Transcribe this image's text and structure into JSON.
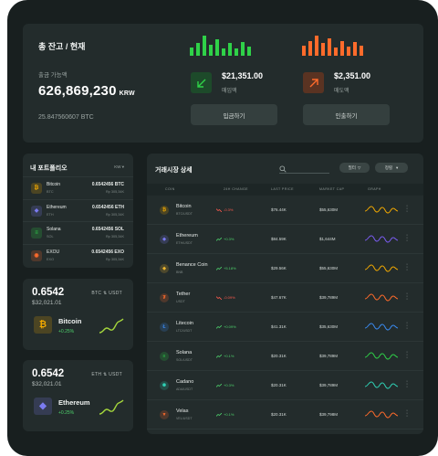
{
  "colors": {
    "green": "#2fd148",
    "orange": "#ff6b2b",
    "up": "#4ed16c",
    "down": "#ff5b4e"
  },
  "balance": {
    "title": "총 잔고 / 현재",
    "sub_label": "출금 가능액",
    "amount": "626,869,230",
    "currency": "KRW",
    "btc": "25.847560607 BTC",
    "deposit": {
      "amount": "$21,351.00",
      "label": "매입액",
      "icon": "arrow-down-left-icon",
      "button": "입금하기"
    },
    "withdraw": {
      "amount": "$2,351.00",
      "label": "매도액",
      "icon": "arrow-up-right-icon",
      "button": "인출하기"
    }
  },
  "portfolio": {
    "title": "내 포트폴리오",
    "selector": "KW",
    "items": [
      {
        "name": "Bitcoin",
        "symbol": "BTC",
        "amount": "0.6542456 BTC",
        "value": "Rp 305,34K",
        "color": "#f2a900",
        "icon": "bitcoin-icon",
        "glyph": "₿"
      },
      {
        "name": "Ethereum",
        "symbol": "ETH",
        "amount": "0.6542456 ETH",
        "value": "Rp 305,34K",
        "color": "#7b7bf2",
        "icon": "ethereum-icon",
        "glyph": "◆"
      },
      {
        "name": "Solana",
        "symbol": "SOL",
        "amount": "0.6542456 SOL",
        "value": "Rp 305,34K",
        "color": "#2fd148",
        "icon": "solana-icon",
        "glyph": "≡"
      },
      {
        "name": "EXOU",
        "symbol": "EXO",
        "amount": "0.6542456 EXO",
        "value": "Rp 305,34K",
        "color": "#ff6b2b",
        "icon": "exou-icon",
        "glyph": "◉"
      }
    ]
  },
  "tickers": [
    {
      "price": "0.6542",
      "usd": "$32,021.01",
      "pair": "BTC ⇅ USDT",
      "name": "Bitcoin",
      "change": "+0.25%",
      "icon": "bitcoin-icon",
      "glyph": "₿",
      "color": "#f2a900",
      "spark": "#a4d63c"
    },
    {
      "price": "0.6542",
      "usd": "$32,021.01",
      "pair": "ETH ⇅ USDT",
      "name": "Ethereum",
      "change": "+0.25%",
      "icon": "ethereum-icon",
      "glyph": "◆",
      "color": "#7b7bf2",
      "spark": "#a4d63c"
    }
  ],
  "market": {
    "title": "거래시장 상세",
    "filter": "필터",
    "sort": "정렬",
    "headers": {
      "coin": "COIN",
      "change": "24H CHANGE",
      "price": "LAST PRICE",
      "cap": "MARKET CAP",
      "graph": "GRAPH"
    },
    "rows": [
      {
        "name": "Bitcoin",
        "pair": "BTC/USDT",
        "change": "-0.3%",
        "dir": "down",
        "price": "$76.44K",
        "cap": "$55,630M",
        "icon": "bitcoin-icon",
        "glyph": "₿",
        "color": "#f2a900",
        "graph": "#f2a900"
      },
      {
        "name": "Ethereum",
        "pair": "ETH/USDT",
        "change": "+0.3%",
        "dir": "up",
        "price": "$84.59K",
        "cap": "$1,644M",
        "icon": "ethereum-icon",
        "glyph": "◆",
        "color": "#7b7bf2",
        "graph": "#7b5cf2"
      },
      {
        "name": "Benance Coin",
        "pair": "BNB",
        "change": "+5.18%",
        "dir": "up",
        "price": "$29.56K",
        "cap": "$55,630M",
        "icon": "binance-coin-icon",
        "glyph": "◈",
        "color": "#f3ba2f",
        "graph": "#f2a900"
      },
      {
        "name": "Tether",
        "pair": "USDT",
        "change": "-0.09%",
        "dir": "down",
        "price": "$47.67K",
        "cap": "$39,789M",
        "icon": "tether-icon",
        "glyph": "₮",
        "color": "#ff6b2b",
        "graph": "#ff6b2b"
      },
      {
        "name": "Litecoin",
        "pair": "LTC/USDT",
        "change": "+0.09%",
        "dir": "up",
        "price": "$41.31K",
        "cap": "$35,630M",
        "icon": "litecoin-icon",
        "glyph": "Ł",
        "color": "#3a8bf2",
        "graph": "#3a8bf2"
      },
      {
        "name": "Solana",
        "pair": "SOL/USDT",
        "change": "+0.1%",
        "dir": "up",
        "price": "$20.31K",
        "cap": "$39,789M",
        "icon": "solana-icon",
        "glyph": "≡",
        "color": "#2fd148",
        "graph": "#2fd148"
      },
      {
        "name": "Cadano",
        "pair": "ADA/USDT",
        "change": "+0.3%",
        "dir": "up",
        "price": "$20.31K",
        "cap": "$39,789M",
        "icon": "cardano-icon",
        "glyph": "✺",
        "color": "#2fd1b5",
        "graph": "#2fd1b5"
      },
      {
        "name": "Velas",
        "pair": "VEL/USDT",
        "change": "+0.1%",
        "dir": "up",
        "price": "$20.31K",
        "cap": "$39,798M",
        "icon": "velas-icon",
        "glyph": "▼",
        "color": "#ff6b2b",
        "graph": "#ff6b2b"
      }
    ]
  }
}
